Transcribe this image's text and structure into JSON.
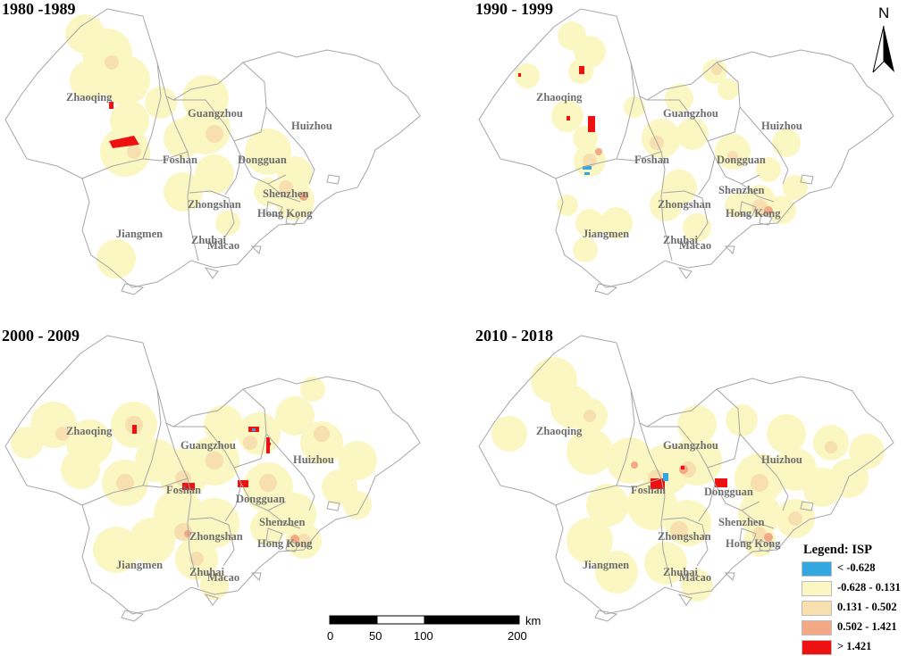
{
  "panels": [
    {
      "title": "1980 -1989",
      "cities": [
        "Zhaoqing",
        "Guangzhou",
        "Huizhou",
        "Foshan",
        "Dongguan",
        "Shenzhen",
        "Zhongshan",
        "Hong Kong",
        "Jiangmen",
        "Zhuhai",
        "Macao"
      ]
    },
    {
      "title": "1990 - 1999",
      "cities": [
        "Zhaoqing",
        "Guangzhou",
        "Huizhou",
        "Foshan",
        "Dongguan",
        "Shenzhen",
        "Zhongshan",
        "Hong Kong",
        "Jiangmen",
        "Zhuhai",
        "Macao"
      ]
    },
    {
      "title": "2000 - 2009",
      "cities": [
        "Zhaoqing",
        "Guangzhou",
        "Huizhou",
        "Foshan",
        "Dongguan",
        "Shenzhen",
        "Zhongshan",
        "Hong Kong",
        "Jiangmen",
        "Zhuhai",
        "Macao"
      ]
    },
    {
      "title": "2010 - 2018",
      "cities": [
        "Zhaoqing",
        "Guangzhou",
        "Huizhou",
        "Foshan",
        "Dongguan",
        "Shenzhen",
        "Zhongshan",
        "Hong Kong",
        "Jiangmen",
        "Zhuhai",
        "Macao"
      ]
    }
  ],
  "north_arrow": {
    "label": "N"
  },
  "scale_bar": {
    "unit": "km",
    "ticks": [
      "0",
      "50",
      "100",
      "200"
    ]
  },
  "legend": {
    "title": "Legend: ISP",
    "items": [
      {
        "label": "< -0.628",
        "color": "#33a8e0"
      },
      {
        "label": "-0.628 - 0.131",
        "color": "#fbf7c2"
      },
      {
        "label": "0.131 - 0.502",
        "color": "#f7dfb0"
      },
      {
        "label": "0.502 - 1.421",
        "color": "#f3a886"
      },
      {
        "label": "> 1.421",
        "color": "#ee1111"
      }
    ]
  }
}
